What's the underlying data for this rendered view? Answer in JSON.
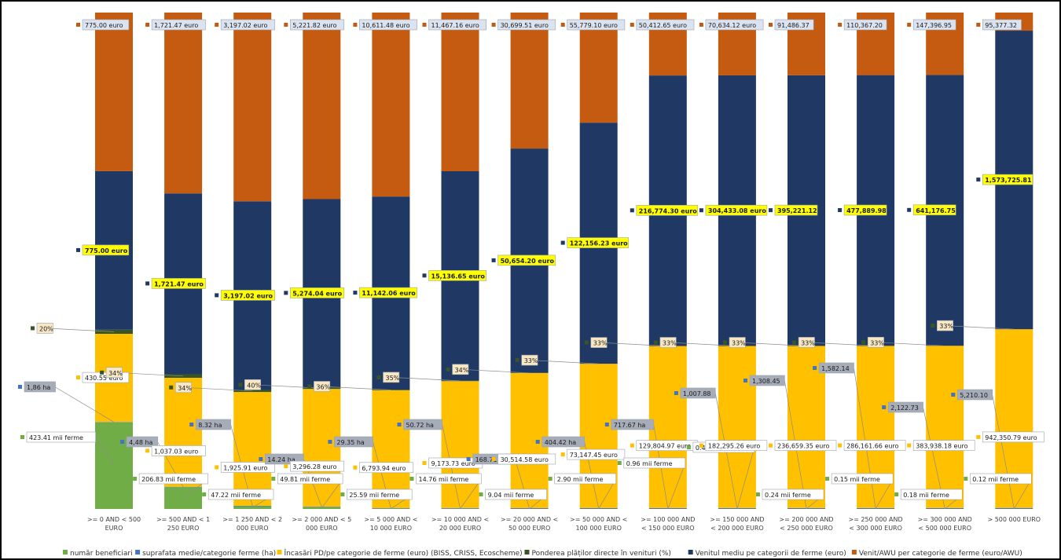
{
  "chart_data": {
    "type": "bar",
    "stacked": true,
    "normalized": true,
    "grid": false,
    "legend_position": "bottom",
    "categories": [
      [
        ">= 0 AND < 500",
        "EURO"
      ],
      [
        ">= 500 AND < 1",
        "250 EURO"
      ],
      [
        ">= 1 250 AND < 2",
        "000 EURO"
      ],
      [
        ">= 2 000 AND < 5",
        "000 EURO"
      ],
      [
        ">= 5 000 AND <",
        "10 000 EURO"
      ],
      [
        ">= 10 000 AND <",
        "20 000 EURO"
      ],
      [
        ">= 20 000 AND <",
        "50 000 EURO"
      ],
      [
        ">= 50 000 AND <",
        "100 000 EURO"
      ],
      [
        ">= 100 000 AND",
        "< 150 000 EURO"
      ],
      [
        ">= 150 000 AND",
        "< 200 000 EURO"
      ],
      [
        ">= 200 000 AND",
        "< 250 000 EURO"
      ],
      [
        ">= 250 000 AND",
        "< 300 000 EURO"
      ],
      [
        ">= 300 000 AND",
        "< 500 000 EURO"
      ],
      [
        "> 500 000 EURO",
        ""
      ]
    ],
    "series": [
      {
        "name": "număr beneficiari",
        "color": "#70ad47",
        "values": [
          423.41,
          206.83,
          47.22,
          49.81,
          25.59,
          14.76,
          9.04,
          2.9,
          0.96,
          0.4,
          0.24,
          0.15,
          0.18,
          0.12
        ],
        "labels": [
          "423.41  mii ferme",
          "206.83  mii ferme",
          "47.22  mii ferme",
          "49.81  mii ferme",
          "25.59  mii ferme",
          "14.76  mii ferme",
          "9.04  mii ferme",
          "2.90  mii ferme",
          "0.96  mii ferme",
          "0.40  mii ferme",
          "0.24  mii ferme",
          "0.15  mii ferme",
          "0.18  mii ferme",
          "0.12  mii ferme"
        ]
      },
      {
        "name": "suprafata medie/categorie ferme (ha)",
        "color": "#4472c4",
        "values": [
          1.86,
          4.48,
          8.32,
          14.24,
          29.35,
          50.72,
          168.71,
          404.42,
          717.67,
          1007.88,
          1308.45,
          1582.14,
          2122.73,
          5210.1
        ],
        "labels": [
          "1,86 ha",
          "4,48 ha",
          "8.32  ha",
          "14.24  ha",
          "29.35  ha",
          "50.72  ha",
          "168.71  ha",
          "404.42  ha",
          "717.67  ha",
          "1,007.88",
          "1,308.45",
          "1,582.14",
          "2,122.73",
          "5,210.10"
        ]
      },
      {
        "name": "Încasări PD/pe categorie de ferme (euro) (BISS, CRISS, Ecoscheme)",
        "color": "#ffc000",
        "values": [
          430.55,
          1037.03,
          1925.91,
          3296.28,
          6793.94,
          9173.73,
          30514.58,
          73147.45,
          129804.97,
          182295.26,
          236659.35,
          286161.66,
          383938.18,
          942350.79
        ],
        "labels": [
          "430.55 euro",
          "1,037.03 euro",
          "1,925.91 euro",
          "3,296.28 euro",
          "6,793.94 euro",
          "9,173.73 euro",
          "30,514.58 euro",
          "73,147.45 euro",
          "129,804.97 euro",
          "182,295.26 euro",
          "236,659.35 euro",
          "286,161.66 euro",
          "383,938.18 euro",
          "942,350.79 euro"
        ]
      },
      {
        "name": "Ponderea  plăților directe în venituri (%)",
        "color": "#375623",
        "values": [
          20,
          34,
          34,
          40,
          36,
          35,
          34,
          33,
          33,
          33,
          33,
          33,
          33,
          33
        ],
        "labels": [
          "20%",
          "34%",
          "34%",
          "40%",
          "36%",
          "35%",
          "34%",
          "33%",
          "33%",
          "33%",
          "33%",
          "33%",
          "33%",
          "33%"
        ]
      },
      {
        "name": "Venitul mediu pe categorii de ferme (euro)",
        "color": "#203864",
        "values": [
          775.0,
          1721.47,
          3197.02,
          5274.04,
          11142.06,
          15136.65,
          50654.2,
          122156.23,
          216774.3,
          304433.08,
          395221.12,
          477889.98,
          641176.75,
          1573725.81
        ],
        "labels": [
          "775.00 euro",
          "1,721.47 euro",
          "3,197.02 euro",
          "5,274.04 euro",
          "11,142.06 euro",
          "15,136.65 euro",
          "50,654.20 euro",
          "122,156.23 euro",
          "216,774.30 euro",
          "304,433.08 euro",
          "395,221.12",
          "477,889.98",
          "641,176.75",
          "1,573,725.81"
        ]
      },
      {
        "name": "Venit/AWU per categorie de ferme (euro/AWU)",
        "color": "#c55a11",
        "values": [
          775.0,
          1721.47,
          3197.02,
          5221.82,
          10611.48,
          11467.16,
          30699.51,
          55779.1,
          50412.65,
          70634.12,
          91486.37,
          110367.2,
          147396.95,
          95377.32
        ],
        "labels": [
          "775.00 euro",
          "1,721.47 euro",
          "3,197.02 euro",
          "5,221.82 euro",
          "10,611.48 euro",
          "11,467.16 euro",
          "30,699.51 euro",
          "55,779.10 euro",
          "50,412.65 euro",
          "70,634.12 euro",
          "91,486.37",
          "110,367.20",
          "147,396.95",
          "95,377.32"
        ]
      }
    ]
  }
}
